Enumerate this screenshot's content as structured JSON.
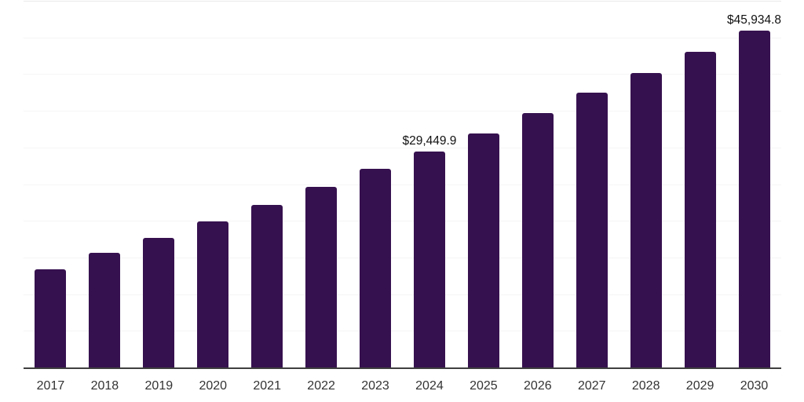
{
  "chart_data": {
    "type": "bar",
    "title": "",
    "xlabel": "",
    "ylabel": "",
    "categories": [
      "2017",
      "2018",
      "2019",
      "2020",
      "2021",
      "2022",
      "2023",
      "2024",
      "2025",
      "2026",
      "2027",
      "2028",
      "2029",
      "2030"
    ],
    "values": [
      13350,
      15650,
      17700,
      19950,
      22150,
      24600,
      27050,
      29449.9,
      31950,
      34700,
      37450,
      40200,
      43000,
      45934.8
    ],
    "data_labels": [
      {
        "category": "2024",
        "text": "$29,449.9"
      },
      {
        "category": "2030",
        "text": "$45,934.8"
      }
    ],
    "ylim": [
      0,
      50000
    ],
    "gridline_step": 5000,
    "grid": "horizontal-faint",
    "legend": "none",
    "bar_color": "#36114F",
    "axis_line_color": "#3f3f3f",
    "gridline_color": "#f5f5f5",
    "tick_label_color": "#333333",
    "data_label_color": "#111111",
    "background_color": "#ffffff"
  }
}
